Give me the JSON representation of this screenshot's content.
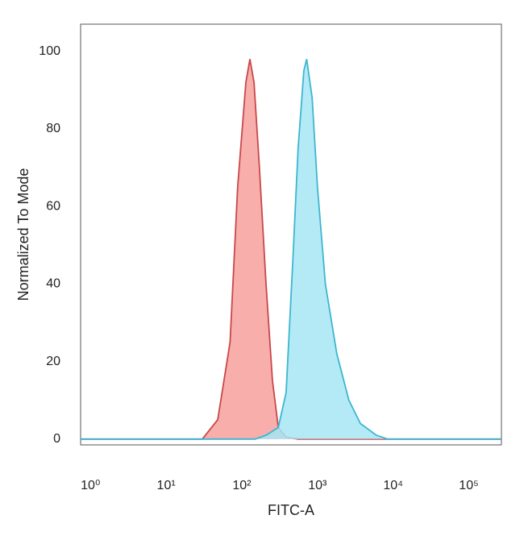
{
  "chart_data": {
    "type": "area",
    "xlabel": "FITC-A",
    "ylabel": "Normalized To Mode",
    "xscale": "log",
    "grid": false,
    "xlim": [
      0.74,
      270000
    ],
    "ylim": [
      -1.5,
      107
    ],
    "xticks": [
      {
        "value": 1,
        "label": "10⁰"
      },
      {
        "value": 10,
        "label": "10¹"
      },
      {
        "value": 100,
        "label": "10²"
      },
      {
        "value": 1000,
        "label": "10³"
      },
      {
        "value": 10000,
        "label": "10⁴"
      },
      {
        "value": 100000,
        "label": "10⁵"
      }
    ],
    "yticks": [
      0,
      20,
      40,
      60,
      80,
      100
    ],
    "series": [
      {
        "color": "#f7a09c",
        "line_color": "#c9474a",
        "x": [
          0.74,
          30,
          48,
          70,
          88,
          113,
          128,
          145,
          171,
          209,
          254,
          303,
          385,
          555,
          270000
        ],
        "values": [
          0,
          0,
          5,
          25,
          65,
          92,
          98,
          92,
          70,
          40,
          15,
          3,
          0.5,
          0,
          0
        ]
      },
      {
        "color": "#a6e6f5",
        "line_color": "#3db6cf",
        "x": [
          0.74,
          150,
          209,
          303,
          385,
          470,
          555,
          660,
          720,
          850,
          1000,
          1270,
          1800,
          2600,
          3700,
          6000,
          8500,
          270000
        ],
        "values": [
          0,
          0,
          1,
          3,
          12,
          45,
          75,
          95,
          98,
          88,
          65,
          40,
          22,
          10,
          4,
          1,
          0,
          0
        ]
      }
    ]
  }
}
